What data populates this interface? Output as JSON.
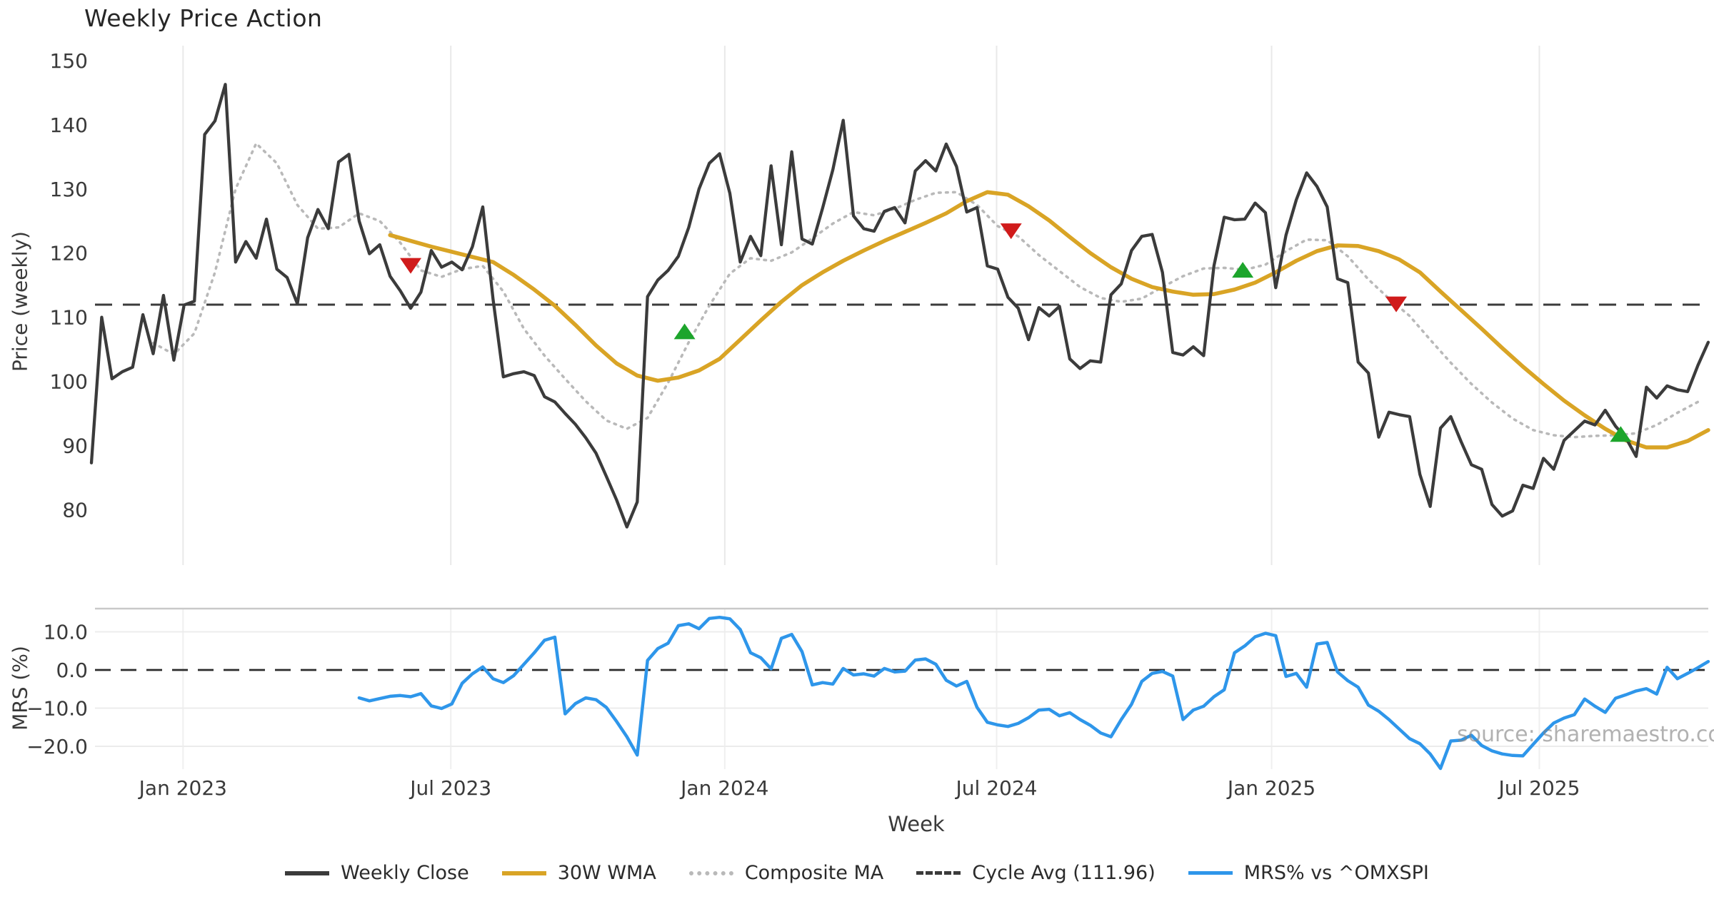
{
  "title": "Weekly Price Action",
  "watermark": "source: sharemaestro.com",
  "axes": {
    "main": {
      "ylabel": "Price (weekly)"
    },
    "mrs": {
      "ylabel": "MRS (%)"
    },
    "xlabel": "Week"
  },
  "legend": {
    "items": [
      {
        "label": "Weekly Close",
        "style": "solid",
        "color": "#3b3b3b"
      },
      {
        "label": "30W WMA",
        "style": "solid",
        "color": "#d9a425"
      },
      {
        "label": "Composite MA",
        "style": "dotted",
        "color": "#b9b9b9"
      },
      {
        "label": "Cycle Avg (111.96)",
        "style": "dashed",
        "color": "#3b3b3b"
      },
      {
        "label": "MRS% vs ^OMXSPI",
        "style": "solid",
        "color": "#2e96ea"
      }
    ]
  },
  "chart_data": [
    {
      "type": "line",
      "panel": "price",
      "title": "Weekly Price Action",
      "ylabel": "Price (weekly)",
      "ylim": [
        72,
        153
      ],
      "yticks": [
        150,
        140,
        130,
        120,
        110,
        100,
        90,
        80
      ],
      "xticks": [
        {
          "label": "Jan 2023",
          "week": 8.9
        },
        {
          "label": "Jul 2023",
          "week": 34.9
        },
        {
          "label": "Jan 2024",
          "week": 61.5
        },
        {
          "label": "Jul 2024",
          "week": 87.9
        },
        {
          "label": "Jan 2025",
          "week": 114.6
        },
        {
          "label": "Jul 2025",
          "week": 140.6
        }
      ],
      "cycle_avg": 111.96,
      "series": [
        {
          "name": "Weekly Close",
          "color": "#3b3b3b",
          "style": "solid",
          "start_week": 0,
          "step": 1,
          "values": [
            87.3,
            110.0,
            100.4,
            101.5,
            102.2,
            110.4,
            104.3,
            113.4,
            103.3,
            111.9,
            112.5,
            138.5,
            140.6,
            146.3,
            118.6,
            121.8,
            119.2,
            125.3,
            117.5,
            116.2,
            112.1,
            122.4,
            126.8,
            123.8,
            134.2,
            135.4,
            125.0,
            119.9,
            121.3,
            116.4,
            114.1,
            111.4,
            113.9,
            120.4,
            117.8,
            118.6,
            117.4,
            121.0,
            127.2,
            112.8,
            100.7,
            101.2,
            101.5,
            100.9,
            97.6,
            96.8,
            95.0,
            93.3,
            91.2,
            88.8,
            85.2,
            81.5,
            77.3,
            81.2,
            113.2,
            115.8,
            117.3,
            119.5,
            124.0,
            130.0,
            134.0,
            135.5,
            129.3,
            118.6,
            122.6,
            119.6,
            133.6,
            121.3,
            135.8,
            122.2,
            121.4,
            127.0,
            133.0,
            140.7,
            125.8,
            123.8,
            123.4,
            126.5,
            127.1,
            124.7,
            132.8,
            134.4,
            132.8,
            137.0,
            133.5,
            126.4,
            127.1,
            118.0,
            117.5,
            113.1,
            111.4,
            106.5,
            111.5,
            110.2,
            111.7,
            103.5,
            102.0,
            103.2,
            103.0,
            113.5,
            115.2,
            120.4,
            122.6,
            122.9,
            117.0,
            104.5,
            104.1,
            105.4,
            104.0,
            118.0,
            125.6,
            125.2,
            125.3,
            127.8,
            126.3,
            114.6,
            122.8,
            128.3,
            132.5,
            130.4,
            127.2,
            116.0,
            115.4,
            103.0,
            101.3,
            91.3,
            95.2,
            94.8,
            94.5,
            85.5,
            80.5,
            92.7,
            94.5,
            90.6,
            87.0,
            86.3,
            80.8,
            79.0,
            79.8,
            83.8,
            83.3,
            88.0,
            86.3,
            90.8,
            92.3,
            93.8,
            93.2,
            95.5,
            93.0,
            91.2,
            88.3,
            99.1,
            97.4,
            99.3,
            98.7,
            98.4,
            102.5,
            106.1
          ]
        },
        {
          "name": "30W WMA",
          "color": "#d9a425",
          "style": "solid",
          "start_week": 29,
          "step": 2,
          "values": [
            122.8,
            121.9,
            121.0,
            120.2,
            119.4,
            118.6,
            116.6,
            114.3,
            111.8,
            108.8,
            105.6,
            102.8,
            100.9,
            100.1,
            100.6,
            101.7,
            103.5,
            106.5,
            109.5,
            112.4,
            115.0,
            117.0,
            118.8,
            120.4,
            121.9,
            123.3,
            124.7,
            126.2,
            128.1,
            129.5,
            129.1,
            127.3,
            125.1,
            122.5,
            120.0,
            117.8,
            116.0,
            114.7,
            114.0,
            113.5,
            113.6,
            114.3,
            115.4,
            117.0,
            118.8,
            120.3,
            121.2,
            121.1,
            120.3,
            119.0,
            117.0,
            114.0,
            111.1,
            108.2,
            105.2,
            102.3,
            99.6,
            97.0,
            94.7,
            92.6,
            90.8,
            89.7,
            89.7,
            90.7,
            92.4
          ]
        },
        {
          "name": "Composite MA",
          "color": "#b9b9b9",
          "style": "dotted",
          "start_week": 6,
          "step": 2,
          "values": [
            106.0,
            104.2,
            107.5,
            117.0,
            130.0,
            137.1,
            134.0,
            127.5,
            123.8,
            124.0,
            126.2,
            125.0,
            121.6,
            117.3,
            116.3,
            117.5,
            118.0,
            114.0,
            108.2,
            104.0,
            100.4,
            96.9,
            93.9,
            92.6,
            94.3,
            99.8,
            106.1,
            111.8,
            116.8,
            119.2,
            118.8,
            120.1,
            122.3,
            124.6,
            126.4,
            125.9,
            126.9,
            128.3,
            129.4,
            129.5,
            127.5,
            124.2,
            122.6,
            119.7,
            117.2,
            114.7,
            113.0,
            112.4,
            112.9,
            114.7,
            116.4,
            117.6,
            117.7,
            117.4,
            118.2,
            120.3,
            122.1,
            122.0,
            119.5,
            115.9,
            112.9,
            110.2,
            106.5,
            102.9,
            99.6,
            96.7,
            94.2,
            92.4,
            91.6,
            91.3,
            91.5,
            91.6,
            91.9,
            93.2,
            95.1,
            96.8
          ]
        }
      ],
      "markers": {
        "sell": {
          "color": "#d01b1b",
          "shape": "triangle-down",
          "points": [
            [
              31.0,
              118.0
            ],
            [
              89.3,
              123.4
            ],
            [
              126.7,
              112.0
            ]
          ]
        },
        "buy": {
          "color": "#1da52c",
          "shape": "triangle-up",
          "points": [
            [
              57.6,
              107.8
            ],
            [
              111.8,
              117.4
            ],
            [
              148.5,
              91.8
            ]
          ]
        }
      }
    },
    {
      "type": "line",
      "panel": "mrs",
      "ylabel": "MRS (%)",
      "ylim": [
        -27,
        16
      ],
      "yticks": [
        10.0,
        0.0,
        -10.0,
        -20.0
      ],
      "ytick_labels": [
        "10.0",
        "0.0",
        "−10.0",
        "−20.0"
      ],
      "zero_line": 0,
      "series": [
        {
          "name": "MRS% vs ^OMXSPI",
          "color": "#2e96ea",
          "style": "solid",
          "start_week": 26,
          "step": 1,
          "values": [
            -7.3,
            -8.1,
            -7.5,
            -6.9,
            -6.7,
            -7.0,
            -6.2,
            -9.4,
            -10.1,
            -8.9,
            -3.5,
            -1.0,
            0.8,
            -2.3,
            -3.3,
            -1.5,
            1.5,
            4.5,
            7.8,
            8.6,
            -11.5,
            -8.8,
            -7.3,
            -7.8,
            -9.8,
            -13.5,
            -17.5,
            -22.3,
            2.5,
            5.6,
            7.0,
            11.6,
            12.1,
            10.8,
            13.5,
            13.8,
            13.4,
            10.6,
            4.5,
            3.2,
            0.3,
            8.3,
            9.3,
            4.8,
            -3.9,
            -3.3,
            -3.7,
            0.4,
            -1.3,
            -1.0,
            -1.6,
            0.4,
            -0.5,
            -0.3,
            2.6,
            2.9,
            1.5,
            -2.7,
            -4.2,
            -3.0,
            -9.8,
            -13.7,
            -14.4,
            -14.8,
            -14.0,
            -12.5,
            -10.5,
            -10.3,
            -12.0,
            -11.2,
            -13.0,
            -14.5,
            -16.5,
            -17.5,
            -13.0,
            -9.0,
            -3.0,
            -0.9,
            -0.4,
            -1.6,
            -13.0,
            -10.5,
            -9.5,
            -7.0,
            -5.2,
            4.5,
            6.3,
            8.7,
            9.6,
            9.0,
            -1.7,
            -0.9,
            -4.5,
            6.8,
            7.2,
            -0.5,
            -2.8,
            -4.5,
            -9.2,
            -10.8,
            -13.0,
            -15.5,
            -18.0,
            -19.3,
            -22.0,
            -25.8,
            -18.6,
            -18.4,
            -17.1,
            -19.8,
            -21.2,
            -22.0,
            -22.4,
            -22.5,
            -19.5,
            -16.5,
            -13.9,
            -12.6,
            -11.7,
            -7.6,
            -9.5,
            -11.1,
            -7.4,
            -6.5,
            -5.5,
            -4.9,
            -6.3,
            0.7,
            -2.3,
            -0.9,
            0.6,
            2.2
          ]
        }
      ]
    }
  ]
}
